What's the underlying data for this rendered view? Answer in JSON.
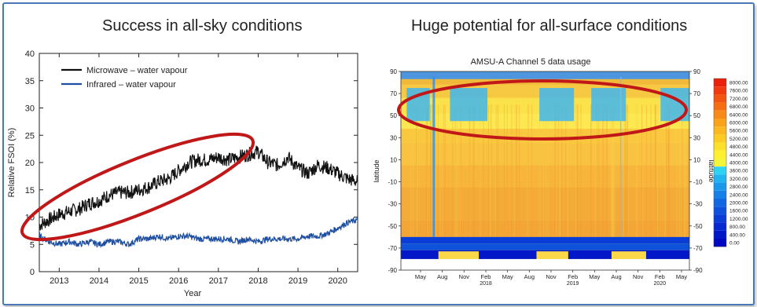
{
  "left_heading": "Success in all-sky conditions",
  "right_heading": "Huge potential for all-surface conditions",
  "colors": {
    "frame": "#4a78b5",
    "microwave": "#111111",
    "infrared": "#1f4fa0",
    "highlight": "#c01818"
  },
  "chart_data": [
    {
      "type": "line",
      "title": "",
      "xlabel": "Year",
      "ylabel": "Relative FSOI (%)",
      "xlim": [
        2012.5,
        2020.5
      ],
      "ylim": [
        0,
        40
      ],
      "xticks": [
        2013,
        2014,
        2015,
        2016,
        2017,
        2018,
        2019,
        2020
      ],
      "yticks": [
        0,
        5,
        10,
        15,
        20,
        25,
        30,
        35,
        40
      ],
      "legend_position": "top-left",
      "series": [
        {
          "name": "Microwave – water vapour",
          "color": "#111111",
          "x": [
            2012.5,
            2012.75,
            2013.0,
            2013.25,
            2013.5,
            2013.75,
            2014.0,
            2014.25,
            2014.5,
            2014.75,
            2015.0,
            2015.25,
            2015.5,
            2015.75,
            2016.0,
            2016.25,
            2016.5,
            2016.75,
            2017.0,
            2017.25,
            2017.5,
            2017.75,
            2018.0,
            2018.25,
            2018.5,
            2018.75,
            2019.0,
            2019.25,
            2019.5,
            2019.75,
            2020.0,
            2020.25,
            2020.5
          ],
          "y": [
            8.5,
            9.5,
            10.5,
            11.0,
            11.5,
            12.5,
            13.0,
            14.0,
            14.5,
            14.5,
            15.0,
            15.5,
            16.5,
            17.0,
            18.5,
            20.0,
            20.5,
            20.5,
            21.0,
            20.5,
            21.0,
            21.5,
            22.0,
            20.0,
            19.5,
            21.0,
            19.0,
            18.0,
            19.5,
            19.0,
            18.0,
            17.0,
            16.5
          ]
        },
        {
          "name": "Infrared – water vapour",
          "color": "#1f4fa0",
          "x": [
            2012.5,
            2012.75,
            2013.0,
            2013.25,
            2013.5,
            2013.75,
            2014.0,
            2014.25,
            2014.5,
            2014.75,
            2015.0,
            2015.25,
            2015.5,
            2015.75,
            2016.0,
            2016.25,
            2016.5,
            2016.75,
            2017.0,
            2017.25,
            2017.5,
            2017.75,
            2018.0,
            2018.25,
            2018.5,
            2018.75,
            2019.0,
            2019.25,
            2019.5,
            2019.75,
            2020.0,
            2020.25,
            2020.5
          ],
          "y": [
            6.5,
            5.5,
            5.0,
            5.5,
            5.0,
            5.5,
            5.0,
            5.5,
            5.5,
            5.0,
            6.0,
            6.0,
            6.5,
            6.0,
            6.5,
            6.5,
            6.0,
            6.0,
            6.0,
            6.0,
            5.5,
            6.0,
            5.5,
            6.0,
            6.0,
            6.0,
            6.0,
            6.5,
            6.5,
            7.0,
            8.0,
            9.0,
            9.5
          ]
        }
      ]
    },
    {
      "type": "heatmap",
      "title": "AMSU-A Channel  5 data usage",
      "xlabel": "",
      "ylabel": "latitude",
      "right_ylabel": "latitude",
      "ylim": [
        -90,
        90
      ],
      "yticks": [
        -90,
        -70,
        -50,
        -30,
        -10,
        10,
        30,
        50,
        70,
        90
      ],
      "xticks": [
        {
          "label": "May",
          "sub": ""
        },
        {
          "label": "Aug",
          "sub": ""
        },
        {
          "label": "Nov",
          "sub": ""
        },
        {
          "label": "Feb",
          "sub": "2018"
        },
        {
          "label": "May",
          "sub": ""
        },
        {
          "label": "Aug",
          "sub": ""
        },
        {
          "label": "Nov",
          "sub": ""
        },
        {
          "label": "Feb",
          "sub": "2019"
        },
        {
          "label": "May",
          "sub": ""
        },
        {
          "label": "Aug",
          "sub": ""
        },
        {
          "label": "Nov",
          "sub": ""
        },
        {
          "label": "Feb",
          "sub": "2020"
        },
        {
          "label": "May",
          "sub": ""
        }
      ],
      "colorbar": {
        "levels": [
          "8000.00",
          "7600.00",
          "7200.00",
          "6800.00",
          "6400.00",
          "6000.00",
          "5600.00",
          "5200.00",
          "4800.00",
          "4400.00",
          "4000.00",
          "3600.00",
          "3200.00",
          "2800.00",
          "2400.00",
          "2000.00",
          "1600.00",
          "1200.00",
          "800.00",
          "400.00",
          "0.00"
        ],
        "colors": [
          "#e8200c",
          "#ee3a0e",
          "#f25512",
          "#f56e14",
          "#f78a18",
          "#f9a21c",
          "#fbb820",
          "#fccc25",
          "#fde02a",
          "#fef030",
          "#f2f53a",
          "#2fd2f2",
          "#22b4f0",
          "#1a98ec",
          "#1680e8",
          "#1268e2",
          "#0e52dc",
          "#0a3cd6",
          "#0628d0",
          "#0218c8",
          "#0008c0"
        ]
      }
    }
  ]
}
